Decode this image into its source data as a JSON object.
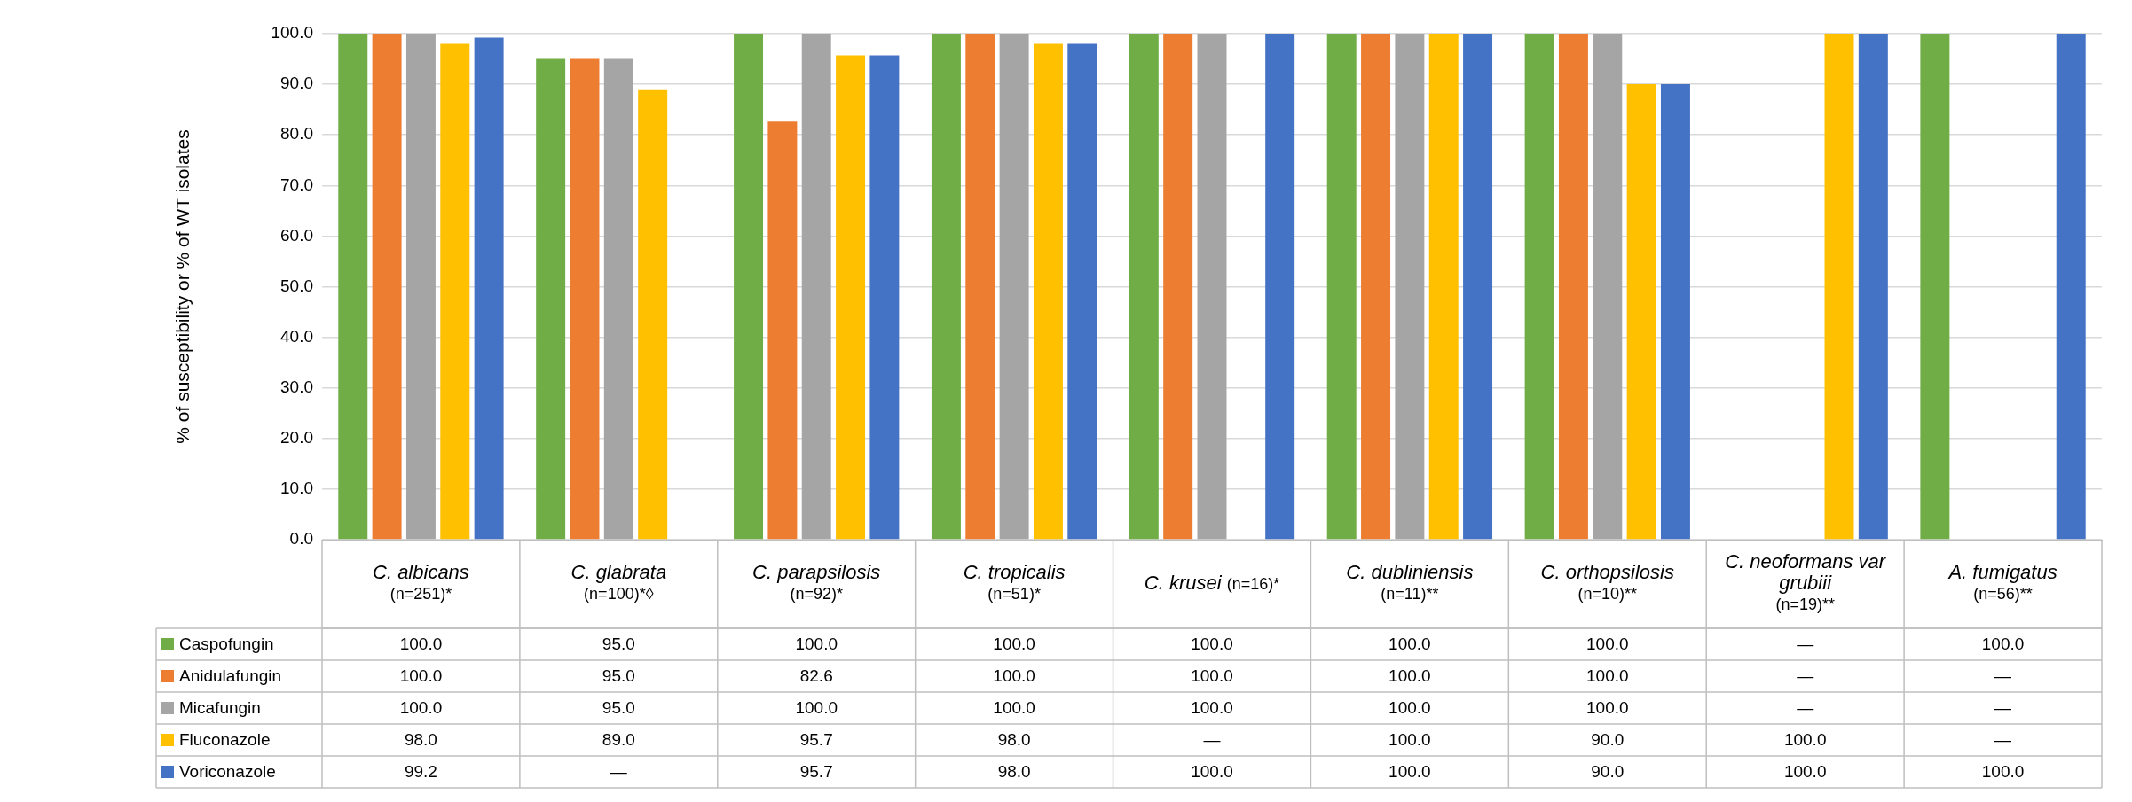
{
  "chart_data": {
    "type": "bar",
    "ylabel": "% of susceptibility or % of WT isolates",
    "categories": [
      "C. albicans (n=251)*",
      "C. glabrata (n=100)*◊",
      "C. parapsilosis (n=92)*",
      "C. tropicalis (n=51)*",
      "C. krusei (n=16)*",
      "C. dubliniensis (n=11)**",
      "C. orthopsilosis (n=10)**",
      "C. neoformans var grubiii (n=19)**",
      "A. fumigatus (n=56)**"
    ],
    "series": [
      {
        "name": "Caspofungin",
        "color": "#70ad47",
        "values": [
          100,
          95,
          100,
          100,
          100,
          100,
          100,
          null,
          100
        ],
        "value_labels": [
          "100.0",
          "95.0",
          "100.0",
          "100.0",
          "100.0",
          "100.0",
          "100.0",
          "—",
          "100.0"
        ]
      },
      {
        "name": "Anidulafungin",
        "color": "#ed7d31",
        "values": [
          100,
          95,
          82.6,
          100,
          100,
          100,
          100,
          null,
          null
        ],
        "value_labels": [
          "100.0",
          "95.0",
          "82.6",
          "100.0",
          "100.0",
          "100.0",
          "100.0",
          "—",
          "—"
        ]
      },
      {
        "name": "Micafungin",
        "color": "#a5a5a5",
        "values": [
          100,
          95,
          100,
          100,
          100,
          100,
          100,
          null,
          null
        ],
        "value_labels": [
          "100.0",
          "95.0",
          "100.0",
          "100.0",
          "100.0",
          "100.0",
          "100.0",
          "—",
          "—"
        ]
      },
      {
        "name": "Fluconazole",
        "color": "#ffc000",
        "values": [
          98,
          89,
          95.7,
          98,
          null,
          100,
          90,
          100,
          null
        ],
        "value_labels": [
          "98.0",
          "89.0",
          "95.7",
          "98.0",
          "—",
          "100.0",
          "90.0",
          "100.0",
          "—"
        ]
      },
      {
        "name": "Voriconazole",
        "color": "#4472c4",
        "values": [
          99.2,
          null,
          95.7,
          98,
          100,
          100,
          90,
          100,
          100
        ],
        "value_labels": [
          "99.2",
          "—",
          "95.7",
          "98.0",
          "100.0",
          "100.0",
          "90.0",
          "100.0",
          "100.0"
        ]
      }
    ],
    "ylim": [
      0,
      100
    ],
    "yticks": [
      {
        "value": 0,
        "label": "0.0"
      },
      {
        "value": 10,
        "label": "10.0"
      },
      {
        "value": 20,
        "label": "20.0"
      },
      {
        "value": 30,
        "label": "30.0"
      },
      {
        "value": 40,
        "label": "40.0"
      },
      {
        "value": 50,
        "label": "50.0"
      },
      {
        "value": 60,
        "label": "60.0"
      },
      {
        "value": 70,
        "label": "70.0"
      },
      {
        "value": 80,
        "label": "80.0"
      },
      {
        "value": 90,
        "label": "90.0"
      },
      {
        "value": 100,
        "label": "100.0"
      }
    ],
    "grid": "y",
    "legend": "bottom"
  }
}
